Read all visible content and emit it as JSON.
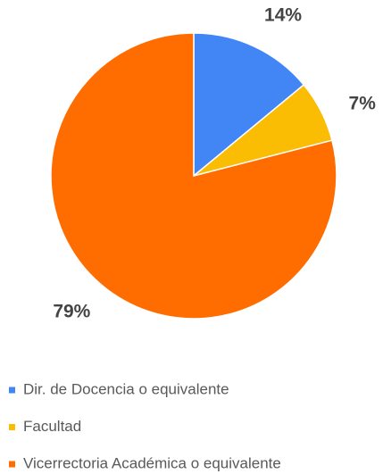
{
  "chart_data": {
    "type": "pie",
    "categories": [
      "Dir. de Docencia o equivalente",
      "Facultad",
      "Vicerrectoria Académica o equivalente"
    ],
    "values": [
      14,
      7,
      79
    ],
    "value_labels": [
      "14%",
      "7%",
      "79%"
    ],
    "colors": [
      "#4285f4",
      "#fbbc04",
      "#ff6d01"
    ],
    "legend": "bottom"
  }
}
